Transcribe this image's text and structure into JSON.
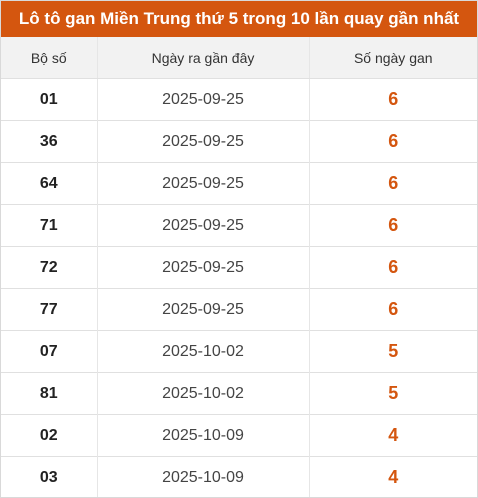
{
  "title": "Lô tô gan Miền Trung thứ 5 trong 10 lần quay gần nhất",
  "colors": {
    "accent": "#d4560f",
    "header_bg": "#f2f2f2",
    "border": "#e0e0e0"
  },
  "table": {
    "headers": [
      "Bộ số",
      "Ngày ra gần đây",
      "Số ngày gan"
    ],
    "rows": [
      {
        "number": "01",
        "date": "2025-09-25",
        "days": "6"
      },
      {
        "number": "36",
        "date": "2025-09-25",
        "days": "6"
      },
      {
        "number": "64",
        "date": "2025-09-25",
        "days": "6"
      },
      {
        "number": "71",
        "date": "2025-09-25",
        "days": "6"
      },
      {
        "number": "72",
        "date": "2025-09-25",
        "days": "6"
      },
      {
        "number": "77",
        "date": "2025-09-25",
        "days": "6"
      },
      {
        "number": "07",
        "date": "2025-10-02",
        "days": "5"
      },
      {
        "number": "81",
        "date": "2025-10-02",
        "days": "5"
      },
      {
        "number": "02",
        "date": "2025-10-09",
        "days": "4"
      },
      {
        "number": "03",
        "date": "2025-10-09",
        "days": "4"
      }
    ]
  }
}
